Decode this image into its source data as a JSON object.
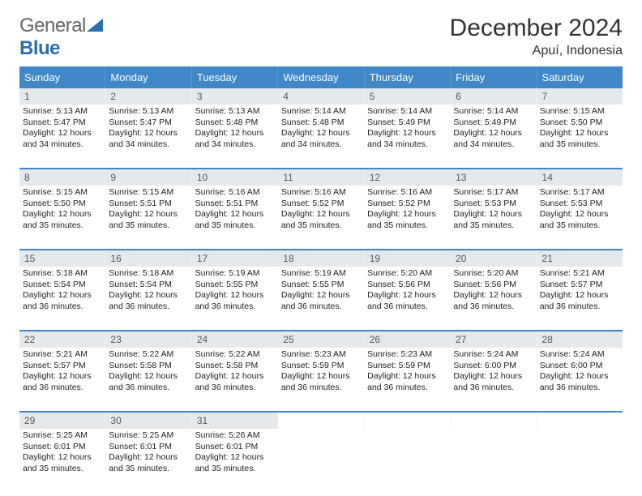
{
  "brand": {
    "part1": "General",
    "part2": "Blue"
  },
  "title": "December 2024",
  "location": "Apuí, Indonesia",
  "colors": {
    "header_bg": "#3f87c6",
    "header_text": "#ffffff",
    "daynum_bg": "#e6e9ec",
    "week_border": "#3f87c6",
    "body_text": "#222222",
    "title_text": "#333333"
  },
  "fonts": {
    "body_size": 10.5,
    "title_size": 30,
    "location_size": 16,
    "dow_size": 13,
    "daynum_size": 12
  },
  "days_of_week": [
    "Sunday",
    "Monday",
    "Tuesday",
    "Wednesday",
    "Thursday",
    "Friday",
    "Saturday"
  ],
  "weeks": [
    [
      {
        "n": "1",
        "sunrise": "5:13 AM",
        "sunset": "5:47 PM",
        "daylight": "12 hours and 34 minutes."
      },
      {
        "n": "2",
        "sunrise": "5:13 AM",
        "sunset": "5:47 PM",
        "daylight": "12 hours and 34 minutes."
      },
      {
        "n": "3",
        "sunrise": "5:13 AM",
        "sunset": "5:48 PM",
        "daylight": "12 hours and 34 minutes."
      },
      {
        "n": "4",
        "sunrise": "5:14 AM",
        "sunset": "5:48 PM",
        "daylight": "12 hours and 34 minutes."
      },
      {
        "n": "5",
        "sunrise": "5:14 AM",
        "sunset": "5:49 PM",
        "daylight": "12 hours and 34 minutes."
      },
      {
        "n": "6",
        "sunrise": "5:14 AM",
        "sunset": "5:49 PM",
        "daylight": "12 hours and 34 minutes."
      },
      {
        "n": "7",
        "sunrise": "5:15 AM",
        "sunset": "5:50 PM",
        "daylight": "12 hours and 35 minutes."
      }
    ],
    [
      {
        "n": "8",
        "sunrise": "5:15 AM",
        "sunset": "5:50 PM",
        "daylight": "12 hours and 35 minutes."
      },
      {
        "n": "9",
        "sunrise": "5:15 AM",
        "sunset": "5:51 PM",
        "daylight": "12 hours and 35 minutes."
      },
      {
        "n": "10",
        "sunrise": "5:16 AM",
        "sunset": "5:51 PM",
        "daylight": "12 hours and 35 minutes."
      },
      {
        "n": "11",
        "sunrise": "5:16 AM",
        "sunset": "5:52 PM",
        "daylight": "12 hours and 35 minutes."
      },
      {
        "n": "12",
        "sunrise": "5:16 AM",
        "sunset": "5:52 PM",
        "daylight": "12 hours and 35 minutes."
      },
      {
        "n": "13",
        "sunrise": "5:17 AM",
        "sunset": "5:53 PM",
        "daylight": "12 hours and 35 minutes."
      },
      {
        "n": "14",
        "sunrise": "5:17 AM",
        "sunset": "5:53 PM",
        "daylight": "12 hours and 35 minutes."
      }
    ],
    [
      {
        "n": "15",
        "sunrise": "5:18 AM",
        "sunset": "5:54 PM",
        "daylight": "12 hours and 36 minutes."
      },
      {
        "n": "16",
        "sunrise": "5:18 AM",
        "sunset": "5:54 PM",
        "daylight": "12 hours and 36 minutes."
      },
      {
        "n": "17",
        "sunrise": "5:19 AM",
        "sunset": "5:55 PM",
        "daylight": "12 hours and 36 minutes."
      },
      {
        "n": "18",
        "sunrise": "5:19 AM",
        "sunset": "5:55 PM",
        "daylight": "12 hours and 36 minutes."
      },
      {
        "n": "19",
        "sunrise": "5:20 AM",
        "sunset": "5:56 PM",
        "daylight": "12 hours and 36 minutes."
      },
      {
        "n": "20",
        "sunrise": "5:20 AM",
        "sunset": "5:56 PM",
        "daylight": "12 hours and 36 minutes."
      },
      {
        "n": "21",
        "sunrise": "5:21 AM",
        "sunset": "5:57 PM",
        "daylight": "12 hours and 36 minutes."
      }
    ],
    [
      {
        "n": "22",
        "sunrise": "5:21 AM",
        "sunset": "5:57 PM",
        "daylight": "12 hours and 36 minutes."
      },
      {
        "n": "23",
        "sunrise": "5:22 AM",
        "sunset": "5:58 PM",
        "daylight": "12 hours and 36 minutes."
      },
      {
        "n": "24",
        "sunrise": "5:22 AM",
        "sunset": "5:58 PM",
        "daylight": "12 hours and 36 minutes."
      },
      {
        "n": "25",
        "sunrise": "5:23 AM",
        "sunset": "5:59 PM",
        "daylight": "12 hours and 36 minutes."
      },
      {
        "n": "26",
        "sunrise": "5:23 AM",
        "sunset": "5:59 PM",
        "daylight": "12 hours and 36 minutes."
      },
      {
        "n": "27",
        "sunrise": "5:24 AM",
        "sunset": "6:00 PM",
        "daylight": "12 hours and 36 minutes."
      },
      {
        "n": "28",
        "sunrise": "5:24 AM",
        "sunset": "6:00 PM",
        "daylight": "12 hours and 36 minutes."
      }
    ],
    [
      {
        "n": "29",
        "sunrise": "5:25 AM",
        "sunset": "6:01 PM",
        "daylight": "12 hours and 35 minutes."
      },
      {
        "n": "30",
        "sunrise": "5:25 AM",
        "sunset": "6:01 PM",
        "daylight": "12 hours and 35 minutes."
      },
      {
        "n": "31",
        "sunrise": "5:26 AM",
        "sunset": "6:01 PM",
        "daylight": "12 hours and 35 minutes."
      },
      null,
      null,
      null,
      null
    ]
  ],
  "labels": {
    "sunrise": "Sunrise:",
    "sunset": "Sunset:",
    "daylight": "Daylight:"
  }
}
